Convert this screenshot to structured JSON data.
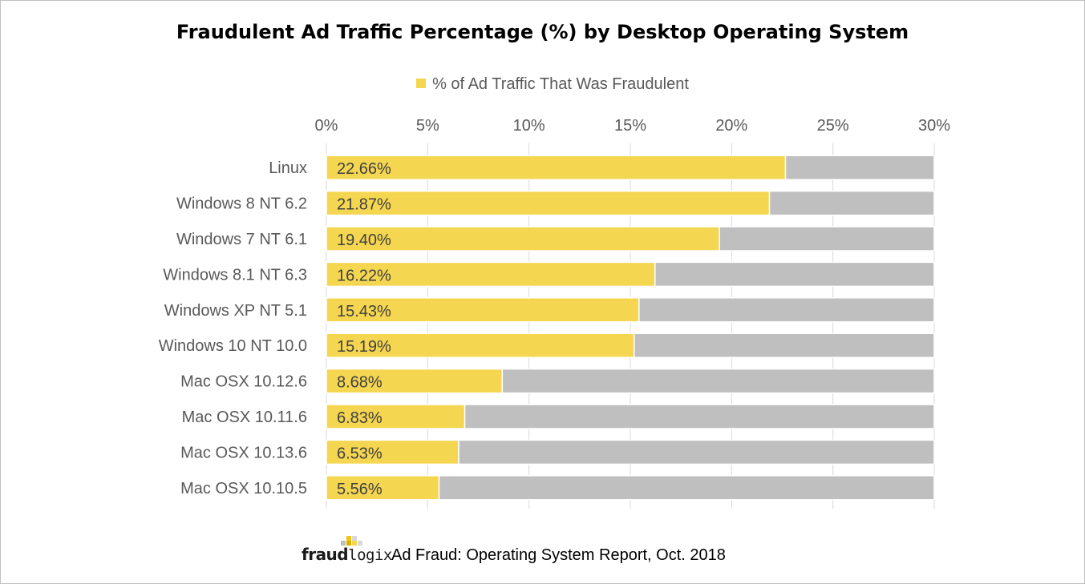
{
  "chart_data": {
    "type": "bar",
    "orientation": "horizontal",
    "stacked": true,
    "title": "Fraudulent Ad Traffic Percentage (%) by Desktop Operating System",
    "categories": [
      "Linux",
      "Windows 8 NT 6.2",
      "Windows 7 NT 6.1",
      "Windows 8.1 NT 6.3",
      "Windows XP NT 5.1",
      "Windows 10 NT 10.0",
      "Mac OSX 10.12.6",
      "Mac OSX 10.11.6",
      "Mac OSX 10.13.6",
      "Mac OSX 10.10.5"
    ],
    "series": [
      {
        "name": "% of Ad Traffic That Was Fraudulent",
        "values": [
          22.66,
          21.87,
          19.4,
          16.22,
          15.43,
          15.19,
          8.68,
          6.83,
          6.53,
          5.56
        ],
        "labels": [
          "22.66%",
          "21.87%",
          "19.40%",
          "16.22%",
          "15.43%",
          "15.19%",
          "8.68%",
          "6.83%",
          "6.53%",
          "5.56%"
        ],
        "color": "#f5d651"
      },
      {
        "values": [
          7.34,
          8.13,
          10.6,
          13.78,
          14.57,
          14.81,
          21.32,
          23.17,
          23.47,
          24.44
        ],
        "color": "#bfbfbf"
      }
    ],
    "xlim": [
      0,
      30
    ],
    "xticks": [
      0,
      5,
      10,
      15,
      20,
      25,
      30
    ],
    "xtick_labels": [
      "0%",
      "5%",
      "10%",
      "15%",
      "20%",
      "25%",
      "30%"
    ],
    "xaxis_position": "top",
    "grid": true,
    "legend_position": "top"
  },
  "colors": {
    "fraud": "#f5d651",
    "remainder": "#bfbfbf",
    "grid": "#d9d9d9",
    "axis_text": "#595959"
  },
  "footer": {
    "logo_text_bold": "fraud",
    "logo_text_light": "logix",
    "caption": "Ad Fraud: Operating System Report, Oct. 2018"
  }
}
